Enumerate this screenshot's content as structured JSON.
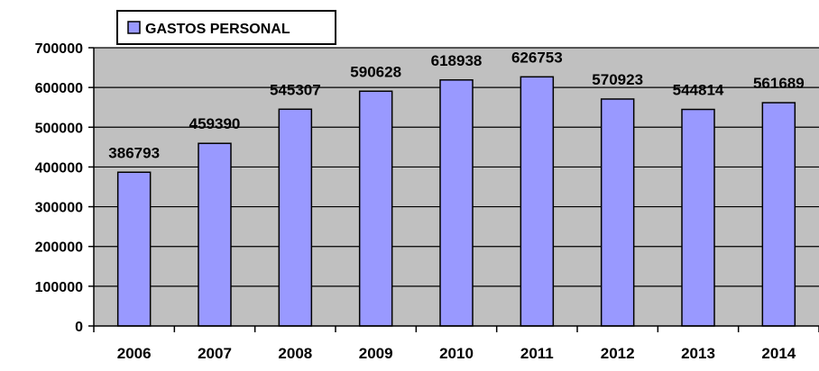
{
  "chart_data": {
    "type": "bar",
    "categories": [
      "2006",
      "2007",
      "2008",
      "2009",
      "2010",
      "2011",
      "2012",
      "2013",
      "2014"
    ],
    "series": [
      {
        "name": "GASTOS PERSONAL",
        "values": [
          386793,
          459390,
          545307,
          590628,
          618938,
          626753,
          570923,
          544814,
          561689
        ],
        "color": "#9999ff"
      }
    ],
    "data_labels": [
      "386793",
      "459390",
      "545307",
      "590628",
      "618938",
      "626753",
      "570923",
      "544814",
      "561689"
    ],
    "yticks": [
      "0",
      "100000",
      "200000",
      "300000",
      "400000",
      "500000",
      "600000",
      "700000"
    ],
    "ylim": [
      0,
      700000
    ],
    "grid": true,
    "legend_position": "top-left",
    "plot_background": "#c0c0c0",
    "title": "",
    "xlabel": "",
    "ylabel": ""
  }
}
